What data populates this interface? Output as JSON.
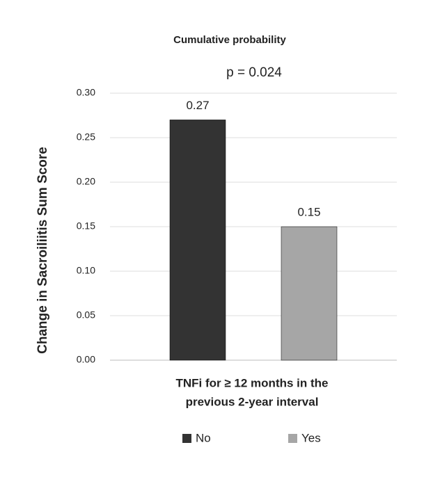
{
  "chart_data": {
    "type": "bar",
    "title": "Cumulative probability",
    "annotation": "p = 0.024",
    "ylabel": "Change in Sacroiliitis Sum Score",
    "xlabel": [
      "TNFi for ≥ 12 months in the",
      "previous 2-year interval"
    ],
    "categories": [
      null
    ],
    "series": [
      {
        "name": "No",
        "color": "#333333",
        "values": [
          0.27
        ]
      },
      {
        "name": "Yes",
        "color": "#a6a6a6",
        "values": [
          0.15
        ]
      }
    ],
    "ylim": [
      0,
      0.3
    ],
    "yticks": [
      {
        "value": 0,
        "label": "0.00"
      },
      {
        "value": 0.05,
        "label": "0.05"
      },
      {
        "value": 0.1,
        "label": "0.10"
      },
      {
        "value": 0.15,
        "label": "0.15"
      },
      {
        "value": 0.2,
        "label": "0.20"
      },
      {
        "value": 0.25,
        "label": "0.25"
      },
      {
        "value": 0.3,
        "label": "0.30"
      }
    ],
    "grid": true,
    "data_labels": true,
    "legend": "bottom"
  }
}
